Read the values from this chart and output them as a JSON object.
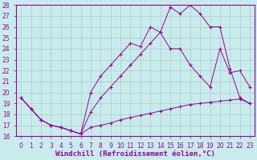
{
  "xlabel": "Windchill (Refroidissement éolien,°C)",
  "bg_color": "#c8ecec",
  "line_color": "#990099",
  "xmin": 0,
  "xmax": 23,
  "ymin": 16,
  "ymax": 28,
  "line1_x": [
    0,
    1,
    2,
    3,
    4,
    5,
    6,
    7,
    8,
    9,
    10,
    11,
    12,
    13,
    14,
    15,
    16,
    17,
    18,
    19,
    20,
    21,
    22,
    23
  ],
  "line1_y": [
    19.5,
    18.5,
    17.5,
    17.0,
    16.8,
    16.5,
    16.2,
    16.8,
    17.0,
    17.2,
    17.5,
    17.7,
    17.9,
    18.1,
    18.3,
    18.5,
    18.7,
    18.9,
    19.0,
    19.1,
    19.2,
    19.3,
    19.4,
    19.0
  ],
  "line2_x": [
    0,
    1,
    2,
    3,
    4,
    5,
    6,
    7,
    8,
    9,
    10,
    11,
    12,
    13,
    14,
    15,
    16,
    17,
    18,
    19,
    20,
    21,
    22,
    23
  ],
  "line2_y": [
    19.5,
    18.5,
    17.5,
    17.0,
    16.8,
    16.5,
    16.2,
    20.0,
    21.5,
    22.5,
    23.5,
    24.5,
    24.2,
    26.0,
    25.5,
    24.0,
    24.0,
    22.5,
    21.5,
    20.5,
    24.0,
    21.8,
    22.0,
    20.5
  ],
  "line3_x": [
    0,
    1,
    2,
    3,
    4,
    5,
    6,
    7,
    8,
    9,
    10,
    11,
    12,
    13,
    14,
    15,
    16,
    17,
    18,
    19,
    20,
    21,
    22,
    23
  ],
  "line3_y": [
    19.5,
    18.5,
    17.5,
    17.0,
    16.8,
    16.5,
    16.2,
    18.2,
    19.5,
    20.5,
    21.5,
    22.5,
    23.5,
    24.5,
    25.5,
    27.8,
    27.2,
    28.0,
    27.2,
    26.0,
    26.0,
    22.2,
    19.5,
    19.0
  ],
  "grid_color": "#b0c8c8",
  "tick_fontsize": 5.5,
  "xlabel_fontsize": 6.5
}
